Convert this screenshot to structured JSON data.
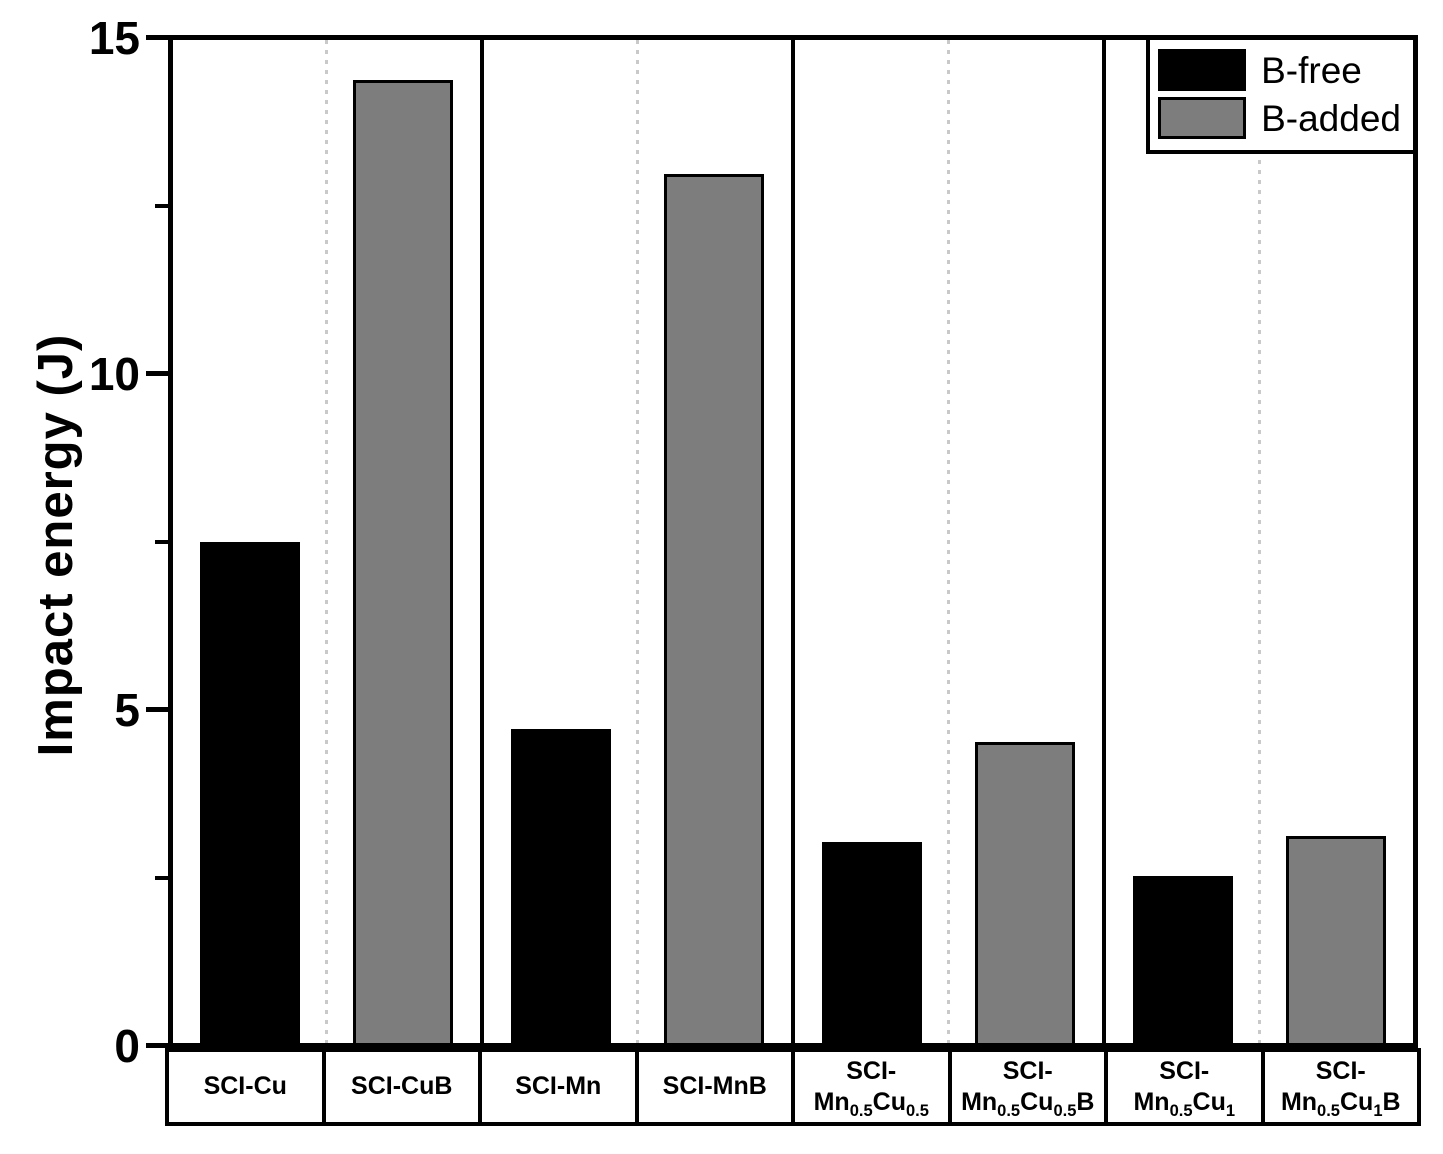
{
  "chart_data": {
    "type": "bar",
    "title": "",
    "xlabel": "",
    "ylabel": "Impact energy (J)",
    "ylim": [
      0,
      15
    ],
    "yticks": [
      0,
      5,
      10,
      15
    ],
    "minor_yticks": [
      2.5,
      7.5,
      12.5
    ],
    "grid": "vertical dotted line at each group center; solid dividers between groups",
    "legend_position": "top-right",
    "series": [
      {
        "name": "B-free",
        "color": "#000000"
      },
      {
        "name": "B-added",
        "color": "#7d7d7d"
      }
    ],
    "categories": [
      "SCI-Cu",
      "SCI-CuB",
      "SCI-Mn",
      "SCI-MnB",
      "SCI-\nMn_{0.5}Cu_{0.5}",
      "SCI-\nMn_{0.5}Cu_{0.5}B",
      "SCI-\nMn_{0.5}Cu_{1}",
      "SCI-\nMn_{0.5}Cu_{1}B"
    ],
    "bar_series": [
      "B-free",
      "B-added",
      "B-free",
      "B-added",
      "B-free",
      "B-added",
      "B-free",
      "B-added"
    ],
    "values": [
      7.5,
      14.4,
      4.7,
      13.0,
      3.0,
      4.5,
      2.5,
      3.1
    ],
    "groups": [
      [
        0,
        1
      ],
      [
        2,
        3
      ],
      [
        4,
        5
      ],
      [
        6,
        7
      ]
    ]
  },
  "colors": {
    "black_bar": "#000000",
    "gray_bar": "#7d7d7d",
    "dotted_line": "#c9c9c9",
    "axis": "#000000",
    "background": "#ffffff"
  }
}
